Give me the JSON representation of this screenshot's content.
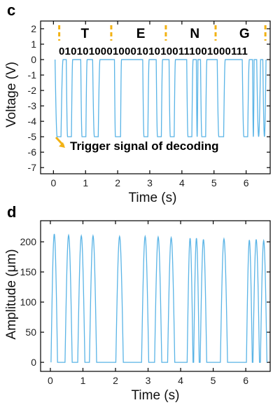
{
  "colors": {
    "trace": "#5ab4e6",
    "accent": "#f2b214",
    "axis": "#000000"
  },
  "chart_data": [
    {
      "panel": "c",
      "type": "line",
      "xlabel": "Time (s)",
      "ylabel": "Voltage (V)",
      "xlim": [
        -0.4,
        6.75
      ],
      "ylim": [
        -7.4,
        2.5
      ],
      "xticks": [
        0,
        1,
        2,
        3,
        4,
        5,
        6
      ],
      "yticks": [
        2,
        1,
        0,
        -1,
        -2,
        -3,
        -4,
        -5,
        -6,
        -7
      ],
      "letters": [
        "T",
        "E",
        "N",
        "G"
      ],
      "letter_x": [
        0.98,
        2.72,
        4.4,
        5.95
      ],
      "separator_x": [
        0.18,
        1.8,
        3.5,
        5.05,
        6.6
      ],
      "bits": "01010100010001010100111001000111",
      "annotation": "Trigger signal of decoding",
      "grid": false,
      "baseline": 0,
      "min": -5,
      "pulses": [
        [
          0.05,
          0.3,
          0.12
        ],
        [
          0.4,
          0.6,
          0.12
        ],
        [
          0.85,
          1.05,
          0.12
        ],
        [
          1.22,
          1.45,
          0.12
        ],
        [
          1.9,
          2.12,
          0.16
        ],
        [
          2.78,
          2.98,
          0.12
        ],
        [
          3.2,
          3.4,
          0.12
        ],
        [
          3.6,
          3.8,
          0.12
        ],
        [
          4.15,
          4.35,
          0.12
        ],
        [
          4.45,
          4.5,
          0.0
        ],
        [
          4.58,
          4.78,
          0.12
        ],
        [
          5.1,
          5.35,
          0.15
        ],
        [
          5.88,
          6.1,
          0.12
        ],
        [
          6.2,
          6.25,
          0.0
        ],
        [
          6.33,
          6.45,
          0.0
        ],
        [
          6.52,
          6.62,
          0.0
        ]
      ]
    },
    {
      "panel": "d",
      "type": "line",
      "xlabel": "Time (s)",
      "ylabel": "Amplitude (μm)",
      "xlim": [
        -0.3,
        6.75
      ],
      "ylim": [
        -15,
        235
      ],
      "xticks": [
        0,
        1,
        2,
        3,
        4,
        5,
        6
      ],
      "yticks": [
        0,
        50,
        100,
        150,
        200
      ],
      "grid": false,
      "baseline": 0,
      "pulses": [
        [
          0.02,
          0.22,
          213
        ],
        [
          0.45,
          0.67,
          211
        ],
        [
          0.84,
          1.06,
          210
        ],
        [
          1.2,
          1.42,
          210
        ],
        [
          2.01,
          2.24,
          209
        ],
        [
          2.8,
          3.02,
          209
        ],
        [
          3.2,
          3.42,
          208
        ],
        [
          3.6,
          3.82,
          207
        ],
        [
          4.2,
          4.38,
          206
        ],
        [
          4.4,
          4.57,
          206
        ],
        [
          4.6,
          4.8,
          204
        ],
        [
          5.22,
          5.44,
          205
        ],
        [
          6.02,
          6.2,
          203
        ],
        [
          6.22,
          6.42,
          204
        ],
        [
          6.45,
          6.65,
          202
        ]
      ]
    }
  ]
}
